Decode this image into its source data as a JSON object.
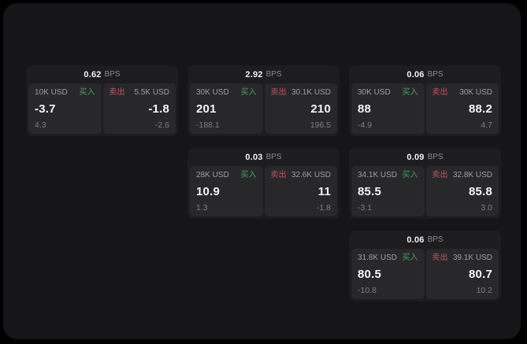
{
  "labels": {
    "bps_unit": "BPS",
    "buy": "买入",
    "sell": "卖出"
  },
  "colors": {
    "page_background": "#000000",
    "canvas_background": "#161618",
    "card_background": "#1d1d1f",
    "panel_background": "#28282a",
    "buy_accent": "#4a9d63",
    "sell_accent": "#bc5668",
    "value_text": "#f4f4f4",
    "muted_text": "#8a8a8a"
  },
  "cards": [
    {
      "row": 1,
      "col": 1,
      "bps": "0.62",
      "buy": {
        "size": "10K USD",
        "value": "-3.7",
        "sub": "4.3"
      },
      "sell": {
        "size": "5.5K USD",
        "value": "-1.8",
        "sub": "-2.6"
      }
    },
    {
      "row": 1,
      "col": 2,
      "bps": "2.92",
      "buy": {
        "size": "30K USD",
        "value": "201",
        "sub": "-188.1"
      },
      "sell": {
        "size": "30.1K USD",
        "value": "210",
        "sub": "196.5"
      }
    },
    {
      "row": 1,
      "col": 3,
      "bps": "0.06",
      "buy": {
        "size": "30K USD",
        "value": "88",
        "sub": "-4.9"
      },
      "sell": {
        "size": "30K USD",
        "value": "88.2",
        "sub": "4.7"
      }
    },
    {
      "row": 2,
      "col": 2,
      "bps": "0.03",
      "buy": {
        "size": "28K USD",
        "value": "10.9",
        "sub": "1.3"
      },
      "sell": {
        "size": "32.6K USD",
        "value": "11",
        "sub": "-1.8"
      }
    },
    {
      "row": 2,
      "col": 3,
      "bps": "0.09",
      "buy": {
        "size": "34.1K USD",
        "value": "85.5",
        "sub": "-3.1"
      },
      "sell": {
        "size": "32.8K USD",
        "value": "85.8",
        "sub": "3.0"
      }
    },
    {
      "row": 3,
      "col": 3,
      "bps": "0.06",
      "buy": {
        "size": "31.8K USD",
        "value": "80.5",
        "sub": "-10.8"
      },
      "sell": {
        "size": "39.1K USD",
        "value": "80.7",
        "sub": "10.2"
      }
    }
  ]
}
